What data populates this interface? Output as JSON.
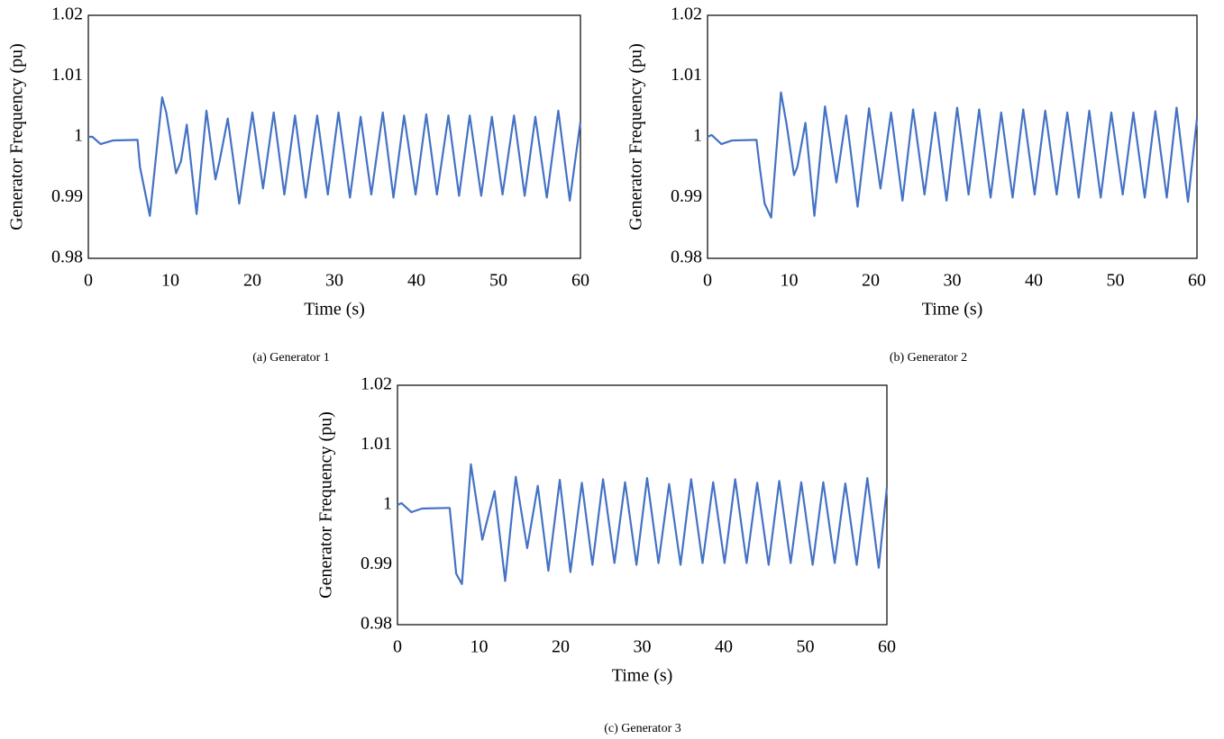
{
  "chart_data": [
    {
      "type": "line",
      "caption": "(a) Generator 1",
      "x_label": "Time (s)",
      "y_label": "Generator Frequency (pu)",
      "series": [
        {
          "color": "#4472c4",
          "x": [
            0,
            0.5,
            1.5,
            3,
            6,
            6.3,
            7.5,
            9,
            9.5,
            10.7,
            11.3,
            12,
            13.2,
            14.4,
            15.5,
            16,
            17,
            18.4,
            20,
            21.3,
            22.6,
            23.9,
            25.2,
            26.5,
            27.9,
            29.2,
            30.5,
            31.9,
            33.2,
            34.5,
            35.9,
            37.2,
            38.5,
            39.9,
            41.2,
            42.5,
            43.9,
            45.2,
            46.5,
            47.9,
            49.2,
            50.5,
            51.9,
            53.2,
            54.5,
            55.9,
            57.3,
            58.7,
            60
          ],
          "values": [
            1.0,
            1.0,
            0.9988,
            0.9994,
            0.9995,
            0.995,
            0.987,
            1.0065,
            1.004,
            0.994,
            0.996,
            1.002,
            0.9873,
            1.0043,
            0.993,
            0.996,
            1.003,
            0.989,
            1.004,
            0.9915,
            1.004,
            0.9905,
            1.0035,
            0.99,
            1.0035,
            0.9905,
            1.004,
            0.99,
            1.0033,
            0.9905,
            1.004,
            0.99,
            1.0035,
            0.9905,
            1.0037,
            0.9905,
            1.0035,
            0.9903,
            1.0035,
            0.9903,
            1.0033,
            0.9905,
            1.0035,
            0.9903,
            1.0033,
            0.99,
            1.0043,
            0.9895,
            1.0025
          ]
        }
      ],
      "xlim": [
        0,
        60
      ],
      "xticks": [
        0,
        10,
        20,
        30,
        40,
        50,
        60
      ],
      "ylim": [
        0.98,
        1.02
      ],
      "yticks": [
        0.98,
        0.99,
        1,
        1.01,
        1.02
      ]
    },
    {
      "type": "line",
      "caption": "(b) Generator 2",
      "x_label": "Time (s)",
      "y_label": "Generator Frequency (pu)",
      "series": [
        {
          "color": "#4472c4",
          "x": [
            0,
            0.5,
            1.7,
            3,
            6,
            6.4,
            7,
            7.8,
            9,
            9.7,
            10.6,
            11,
            12,
            13.1,
            14.4,
            15.8,
            17,
            18.4,
            19.8,
            21.2,
            22.5,
            23.9,
            25.2,
            26.6,
            27.9,
            29.3,
            30.6,
            32,
            33.3,
            34.7,
            36,
            37.4,
            38.7,
            40.1,
            41.4,
            42.8,
            44.1,
            45.5,
            46.8,
            48.2,
            49.5,
            50.9,
            52.2,
            53.6,
            54.9,
            56.3,
            57.5,
            58.9,
            60
          ],
          "values": [
            1.0,
            1.0003,
            0.9988,
            0.9994,
            0.9995,
            0.995,
            0.989,
            0.9867,
            1.0073,
            1.002,
            0.9937,
            0.995,
            1.0023,
            0.987,
            1.005,
            0.9925,
            1.0035,
            0.9885,
            1.0047,
            0.9915,
            1.004,
            0.9895,
            1.0045,
            0.9905,
            1.004,
            0.9895,
            1.0048,
            0.9905,
            1.0045,
            0.99,
            1.004,
            0.99,
            1.0045,
            0.9905,
            1.0043,
            0.9905,
            1.004,
            0.99,
            1.0043,
            0.99,
            1.004,
            0.9905,
            1.004,
            0.99,
            1.0042,
            0.99,
            1.0048,
            0.9893,
            1.003
          ]
        }
      ],
      "xlim": [
        0,
        60
      ],
      "xticks": [
        0,
        10,
        20,
        30,
        40,
        50,
        60
      ],
      "ylim": [
        0.98,
        1.02
      ],
      "yticks": [
        0.98,
        0.99,
        1,
        1.01,
        1.02
      ]
    },
    {
      "type": "line",
      "caption": "(c) Generator 3",
      "x_label": "Time (s)",
      "y_label": "Generator Frequency (pu)",
      "series": [
        {
          "color": "#4472c4",
          "x": [
            0,
            0.5,
            1.7,
            3,
            6,
            6.4,
            7.2,
            7.9,
            9,
            10.4,
            11.9,
            13.2,
            14.5,
            15.9,
            17.2,
            18.5,
            19.9,
            21.2,
            22.6,
            23.9,
            25.2,
            26.6,
            27.9,
            29.3,
            30.6,
            32,
            33.3,
            34.7,
            36,
            37.4,
            38.7,
            40.1,
            41.4,
            42.8,
            44.1,
            45.5,
            46.8,
            48.2,
            49.5,
            50.9,
            52.2,
            53.6,
            54.9,
            56.3,
            57.6,
            59,
            60
          ],
          "values": [
            1.0,
            1.0003,
            0.9988,
            0.9994,
            0.9995,
            0.9995,
            0.9885,
            0.9868,
            1.0068,
            0.9942,
            1.0023,
            0.9873,
            1.0047,
            0.9928,
            1.0032,
            0.989,
            1.0042,
            0.9888,
            1.0037,
            0.99,
            1.0043,
            0.9903,
            1.0038,
            0.99,
            1.0045,
            0.9903,
            1.0035,
            0.99,
            1.0043,
            0.9903,
            1.0038,
            0.9903,
            1.0043,
            0.9903,
            1.0037,
            0.99,
            1.004,
            0.9903,
            1.0038,
            0.99,
            1.0038,
            0.9903,
            1.0036,
            0.99,
            1.0045,
            0.9895,
            1.003
          ]
        }
      ],
      "xlim": [
        0,
        60
      ],
      "xticks": [
        0,
        10,
        20,
        30,
        40,
        50,
        60
      ],
      "ylim": [
        0.98,
        1.02
      ],
      "yticks": [
        0.98,
        0.99,
        1,
        1.01,
        1.02
      ]
    }
  ]
}
